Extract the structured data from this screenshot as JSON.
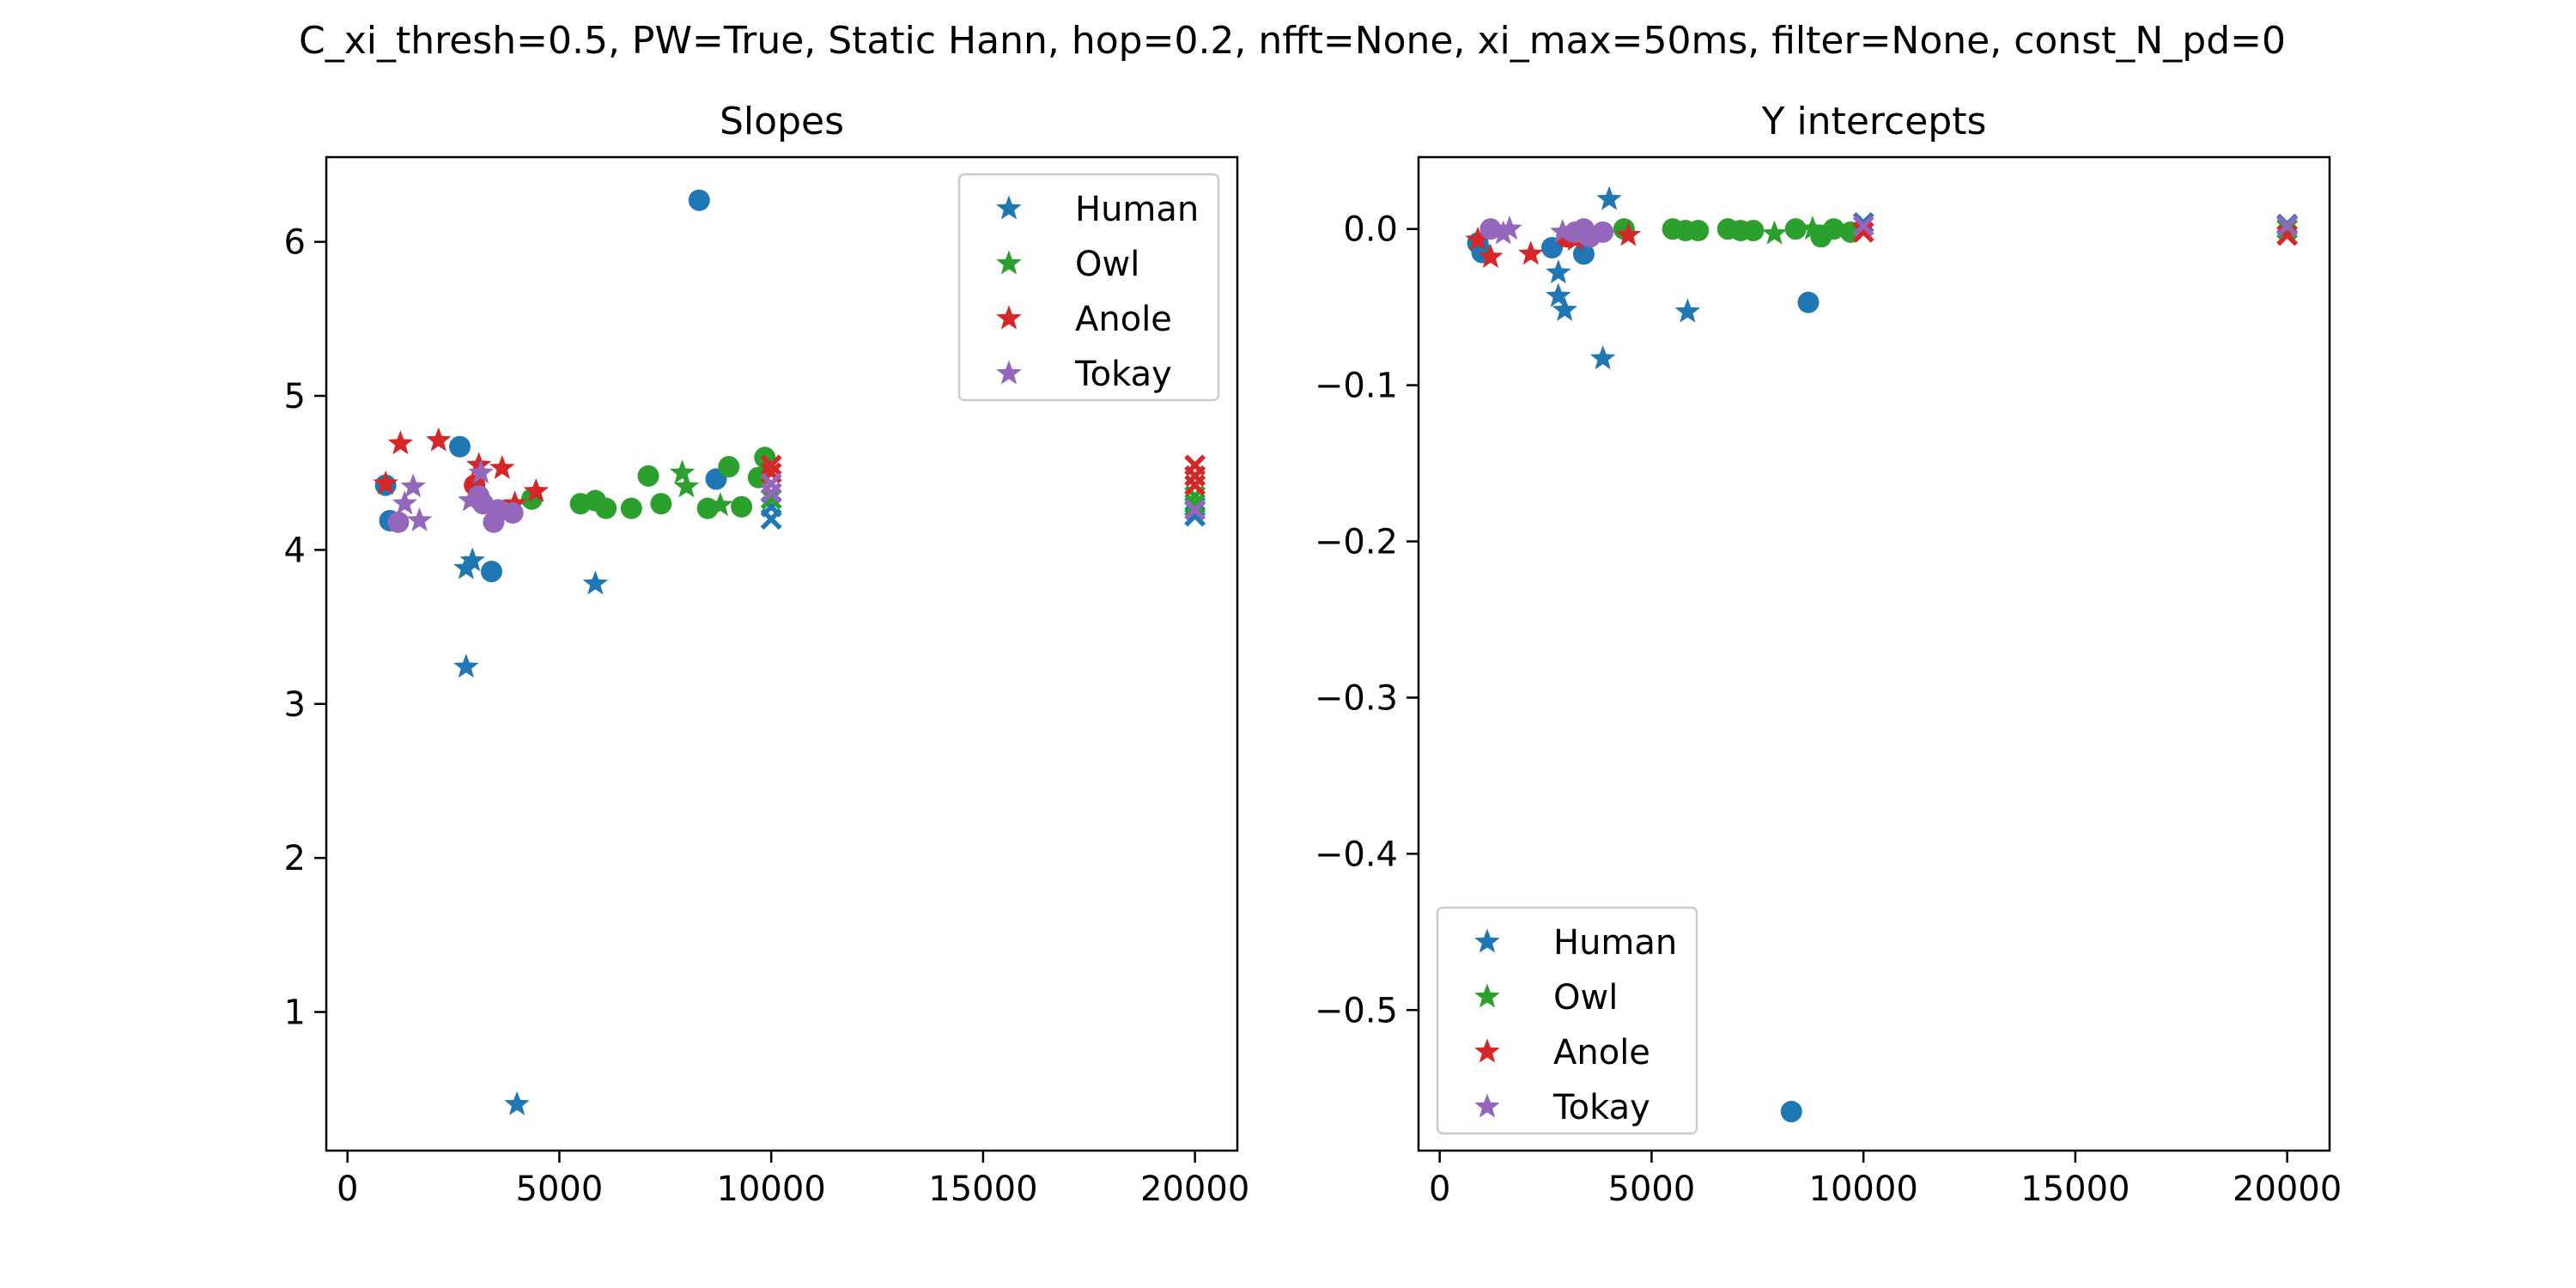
{
  "suptitle": "C_xi_thresh=0.5, PW=True, Static Hann, hop=0.2, nfft=None, xi_max=50ms, filter=None, const_N_pd=0",
  "colors": {
    "Human": "#1f77b4",
    "Owl": "#2ca02c",
    "Anole": "#d62728",
    "Tokay": "#9467bd"
  },
  "chart_data": [
    {
      "type": "scatter",
      "title": "Slopes",
      "xlim": [
        -500,
        21000
      ],
      "ylim": [
        0.1,
        6.55
      ],
      "xticks": [
        0,
        5000,
        10000,
        15000,
        20000
      ],
      "xtick_labels": [
        "0",
        "5000",
        "10000",
        "15000",
        "20000"
      ],
      "yticks": [
        1,
        2,
        3,
        4,
        5,
        6
      ],
      "ytick_labels": [
        "1",
        "2",
        "3",
        "4",
        "5",
        "6"
      ],
      "legend": {
        "position": "upper-right",
        "entries": [
          "Human",
          "Owl",
          "Anole",
          "Tokay"
        ]
      },
      "series": [
        {
          "name": "Human",
          "points": [
            {
              "x": 900,
              "y": 4.42,
              "m": "o"
            },
            {
              "x": 1000,
              "y": 4.19,
              "m": "o"
            },
            {
              "x": 2650,
              "y": 4.67,
              "m": "o"
            },
            {
              "x": 3400,
              "y": 3.86,
              "m": "o"
            },
            {
              "x": 8300,
              "y": 6.27,
              "m": "o"
            },
            {
              "x": 8700,
              "y": 4.46,
              "m": "o"
            },
            {
              "x": 2800,
              "y": 3.88,
              "m": "*"
            },
            {
              "x": 2950,
              "y": 3.93,
              "m": "*"
            },
            {
              "x": 2800,
              "y": 3.24,
              "m": "*"
            },
            {
              "x": 4000,
              "y": 0.4,
              "m": "*"
            },
            {
              "x": 5850,
              "y": 3.78,
              "m": "*"
            },
            {
              "x": 10000,
              "y": 4.2,
              "m": "x"
            },
            {
              "x": 10000,
              "y": 4.28,
              "m": "x"
            },
            {
              "x": 20000,
              "y": 4.28,
              "m": "x"
            },
            {
              "x": 20000,
              "y": 4.22,
              "m": "x"
            }
          ]
        },
        {
          "name": "Owl",
          "points": [
            {
              "x": 4350,
              "y": 4.33,
              "m": "o"
            },
            {
              "x": 5500,
              "y": 4.3,
              "m": "o"
            },
            {
              "x": 5850,
              "y": 4.32,
              "m": "o"
            },
            {
              "x": 6100,
              "y": 4.27,
              "m": "o"
            },
            {
              "x": 6700,
              "y": 4.27,
              "m": "o"
            },
            {
              "x": 7100,
              "y": 4.48,
              "m": "o"
            },
            {
              "x": 7400,
              "y": 4.3,
              "m": "o"
            },
            {
              "x": 8500,
              "y": 4.27,
              "m": "o"
            },
            {
              "x": 9000,
              "y": 4.54,
              "m": "o"
            },
            {
              "x": 9300,
              "y": 4.28,
              "m": "o"
            },
            {
              "x": 9700,
              "y": 4.47,
              "m": "o"
            },
            {
              "x": 9850,
              "y": 4.6,
              "m": "o"
            },
            {
              "x": 7900,
              "y": 4.5,
              "m": "*"
            },
            {
              "x": 8000,
              "y": 4.41,
              "m": "*"
            },
            {
              "x": 8800,
              "y": 4.29,
              "m": "*"
            },
            {
              "x": 10000,
              "y": 4.33,
              "m": "x"
            },
            {
              "x": 20000,
              "y": 4.35,
              "m": "x"
            },
            {
              "x": 20000,
              "y": 4.3,
              "m": "x"
            }
          ]
        },
        {
          "name": "Anole",
          "points": [
            {
              "x": 3000,
              "y": 4.42,
              "m": "o"
            },
            {
              "x": 900,
              "y": 4.43,
              "m": "*"
            },
            {
              "x": 1250,
              "y": 4.69,
              "m": "*"
            },
            {
              "x": 2150,
              "y": 4.71,
              "m": "*"
            },
            {
              "x": 3100,
              "y": 4.55,
              "m": "*"
            },
            {
              "x": 3650,
              "y": 4.53,
              "m": "*"
            },
            {
              "x": 3950,
              "y": 4.3,
              "m": "*"
            },
            {
              "x": 4450,
              "y": 4.38,
              "m": "*"
            },
            {
              "x": 10000,
              "y": 4.55,
              "m": "x"
            },
            {
              "x": 10000,
              "y": 4.5,
              "m": "x"
            },
            {
              "x": 20000,
              "y": 4.55,
              "m": "x"
            },
            {
              "x": 20000,
              "y": 4.48,
              "m": "x"
            },
            {
              "x": 20000,
              "y": 4.42,
              "m": "x"
            }
          ]
        },
        {
          "name": "Tokay",
          "points": [
            {
              "x": 1200,
              "y": 4.18,
              "m": "o"
            },
            {
              "x": 3100,
              "y": 4.35,
              "m": "o"
            },
            {
              "x": 3200,
              "y": 4.3,
              "m": "o"
            },
            {
              "x": 3450,
              "y": 4.18,
              "m": "o"
            },
            {
              "x": 3550,
              "y": 4.26,
              "m": "o"
            },
            {
              "x": 3900,
              "y": 4.24,
              "m": "o"
            },
            {
              "x": 1350,
              "y": 4.3,
              "m": "*"
            },
            {
              "x": 1550,
              "y": 4.41,
              "m": "*"
            },
            {
              "x": 1700,
              "y": 4.19,
              "m": "*"
            },
            {
              "x": 2900,
              "y": 4.32,
              "m": "*"
            },
            {
              "x": 3150,
              "y": 4.5,
              "m": "*"
            },
            {
              "x": 10000,
              "y": 4.43,
              "m": "x"
            },
            {
              "x": 10000,
              "y": 4.37,
              "m": "x"
            },
            {
              "x": 20000,
              "y": 4.26,
              "m": "x"
            }
          ]
        }
      ]
    },
    {
      "type": "scatter",
      "title": "Y intercepts",
      "xlim": [
        -500,
        21000
      ],
      "ylim": [
        -0.59,
        0.046
      ],
      "xticks": [
        0,
        5000,
        10000,
        15000,
        20000
      ],
      "xtick_labels": [
        "0",
        "5000",
        "10000",
        "15000",
        "20000"
      ],
      "yticks": [
        0.0,
        -0.1,
        -0.2,
        -0.3,
        -0.4,
        -0.5
      ],
      "ytick_labels": [
        "0.0",
        "−0.1",
        "−0.2",
        "−0.3",
        "−0.4",
        "−0.5"
      ],
      "legend": {
        "position": "lower-left",
        "entries": [
          "Human",
          "Owl",
          "Anole",
          "Tokay"
        ]
      },
      "series": [
        {
          "name": "Human",
          "points": [
            {
              "x": 900,
              "y": -0.009,
              "m": "o"
            },
            {
              "x": 1000,
              "y": -0.015,
              "m": "o"
            },
            {
              "x": 2650,
              "y": -0.012,
              "m": "o"
            },
            {
              "x": 3400,
              "y": -0.016,
              "m": "o"
            },
            {
              "x": 8700,
              "y": -0.047,
              "m": "o"
            },
            {
              "x": 8300,
              "y": -0.565,
              "m": "o"
            },
            {
              "x": 2800,
              "y": -0.028,
              "m": "*"
            },
            {
              "x": 2800,
              "y": -0.043,
              "m": "*"
            },
            {
              "x": 2950,
              "y": -0.052,
              "m": "*"
            },
            {
              "x": 4000,
              "y": 0.019,
              "m": "*"
            },
            {
              "x": 3850,
              "y": -0.083,
              "m": "*"
            },
            {
              "x": 5850,
              "y": -0.053,
              "m": "*"
            },
            {
              "x": 10000,
              "y": 0.004,
              "m": "x"
            },
            {
              "x": 20000,
              "y": 0.003,
              "m": "x"
            }
          ]
        },
        {
          "name": "Owl",
          "points": [
            {
              "x": 4350,
              "y": 0.0,
              "m": "o"
            },
            {
              "x": 5500,
              "y": 0.0,
              "m": "o"
            },
            {
              "x": 5800,
              "y": -0.001,
              "m": "o"
            },
            {
              "x": 6100,
              "y": -0.001,
              "m": "o"
            },
            {
              "x": 6800,
              "y": 0.0,
              "m": "o"
            },
            {
              "x": 7100,
              "y": -0.001,
              "m": "o"
            },
            {
              "x": 7400,
              "y": -0.001,
              "m": "o"
            },
            {
              "x": 8400,
              "y": 0.0,
              "m": "o"
            },
            {
              "x": 9000,
              "y": -0.005,
              "m": "o"
            },
            {
              "x": 9300,
              "y": 0.0,
              "m": "o"
            },
            {
              "x": 9700,
              "y": -0.002,
              "m": "o"
            },
            {
              "x": 7900,
              "y": -0.003,
              "m": "*"
            },
            {
              "x": 8800,
              "y": 0.0,
              "m": "*"
            },
            {
              "x": 20000,
              "y": 0.0,
              "m": "x"
            }
          ]
        },
        {
          "name": "Anole",
          "points": [
            {
              "x": 3000,
              "y": -0.005,
              "m": "o"
            },
            {
              "x": 900,
              "y": -0.007,
              "m": "*"
            },
            {
              "x": 1200,
              "y": -0.018,
              "m": "*"
            },
            {
              "x": 2150,
              "y": -0.016,
              "m": "*"
            },
            {
              "x": 3200,
              "y": -0.007,
              "m": "*"
            },
            {
              "x": 4450,
              "y": -0.004,
              "m": "*"
            },
            {
              "x": 10000,
              "y": -0.002,
              "m": "x"
            },
            {
              "x": 20000,
              "y": -0.004,
              "m": "x"
            }
          ]
        },
        {
          "name": "Tokay",
          "points": [
            {
              "x": 1200,
              "y": 0.0,
              "m": "o"
            },
            {
              "x": 3200,
              "y": -0.002,
              "m": "o"
            },
            {
              "x": 3400,
              "y": 0.0,
              "m": "o"
            },
            {
              "x": 3550,
              "y": -0.005,
              "m": "o"
            },
            {
              "x": 3850,
              "y": -0.002,
              "m": "o"
            },
            {
              "x": 1500,
              "y": -0.003,
              "m": "*"
            },
            {
              "x": 1650,
              "y": 0.0,
              "m": "*"
            },
            {
              "x": 2900,
              "y": -0.002,
              "m": "*"
            },
            {
              "x": 10000,
              "y": 0.002,
              "m": "x"
            },
            {
              "x": 20000,
              "y": 0.002,
              "m": "x"
            }
          ]
        }
      ]
    }
  ]
}
